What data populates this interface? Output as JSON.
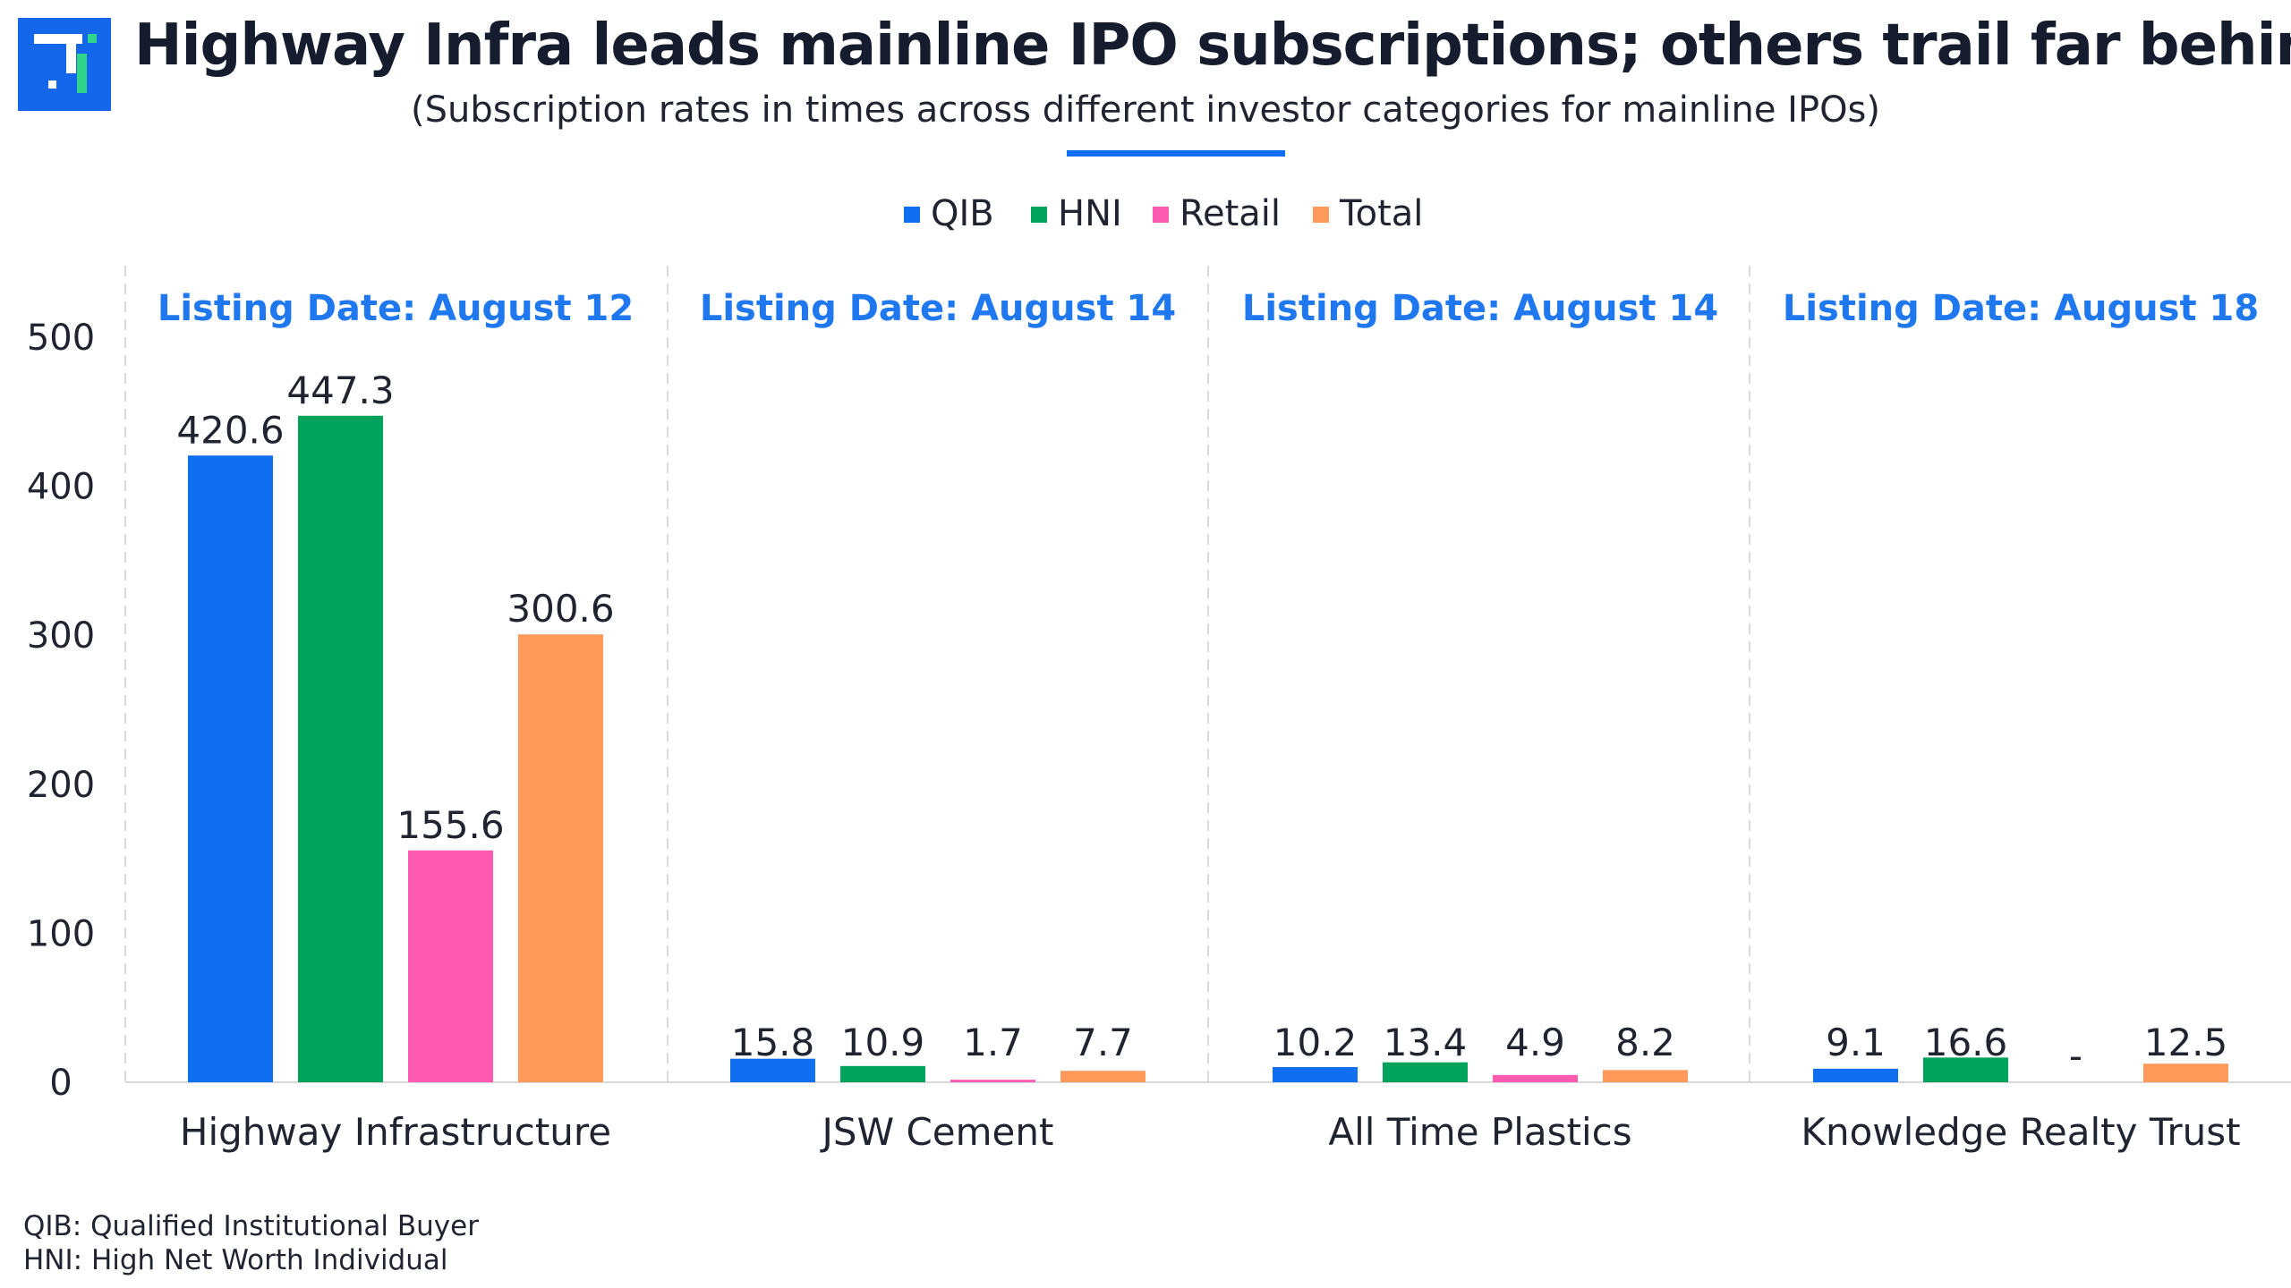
{
  "title": "Highway Infra leads mainline IPO subscriptions; others trail far behind",
  "subtitle": "(Subscription rates in times across different investor categories for mainline IPOs)",
  "logo_icon": "brand-logo-icon",
  "colors": {
    "QIB": "#0f6ff0",
    "HNI": "#00a35c",
    "Retail": "#ff5ab1",
    "Total": "#ff9a5b",
    "listing": "#1f78f0",
    "accent": "#0f6ff0"
  },
  "footnotes": [
    "QIB: Qualified Institutional Buyer",
    "HNI: High Net Worth Individual"
  ],
  "chart_data": {
    "type": "bar",
    "categories": [
      "Highway Infrastructure",
      "JSW Cement",
      "All Time Plastics",
      "Knowledge Realty Trust"
    ],
    "group_headers": [
      "Listing Date: August 12",
      "Listing Date: August 14",
      "Listing Date: August 14",
      "Listing Date: August 18"
    ],
    "series": [
      {
        "name": "QIB",
        "values": [
          420.6,
          15.8,
          10.2,
          9.1
        ],
        "labels": [
          "420.6",
          "15.8",
          "10.2",
          "9.1"
        ]
      },
      {
        "name": "HNI",
        "values": [
          447.3,
          10.9,
          13.4,
          16.6
        ],
        "labels": [
          "447.3",
          "10.9",
          "13.4",
          "16.6"
        ]
      },
      {
        "name": "Retail",
        "values": [
          155.6,
          1.7,
          4.9,
          null
        ],
        "labels": [
          "155.6",
          "1.7",
          "4.9",
          "-"
        ]
      },
      {
        "name": "Total",
        "values": [
          300.6,
          7.7,
          8.2,
          12.5
        ],
        "labels": [
          "300.6",
          "7.7",
          "8.2",
          "12.5"
        ]
      }
    ],
    "yticks": [
      "0",
      "100",
      "200",
      "300",
      "400",
      "500"
    ],
    "ylim": [
      0,
      500
    ],
    "xlabel": "",
    "ylabel": "",
    "legend_position": "top-center",
    "grid": false
  }
}
